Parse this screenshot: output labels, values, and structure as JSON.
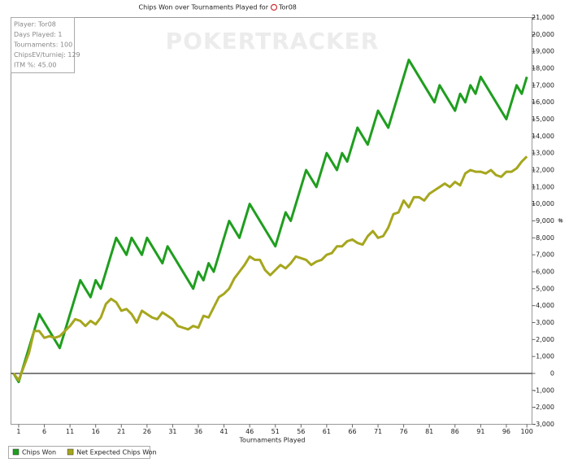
{
  "chart_data": {
    "type": "line",
    "title": "Chips Won over Tournaments Played for",
    "player": "Tor08",
    "watermark": "POKERTRACKER",
    "info": [
      "Player: Tor08",
      "Days Played: 1",
      "Tournaments: 100",
      "ChipsEV/turniej: 129",
      "ITM %: 45.00"
    ],
    "x_label": "Tournaments Played",
    "y_label": "#",
    "xlim": [
      -0.5,
      101
    ],
    "xticks": [
      1,
      6,
      11,
      16,
      21,
      26,
      31,
      36,
      41,
      46,
      51,
      56,
      61,
      66,
      71,
      76,
      81,
      86,
      91,
      96,
      100
    ],
    "ylim": [
      -3000,
      21000
    ],
    "yticks": [
      {
        "value": -3000,
        "label": "-3,000"
      },
      {
        "value": -2000,
        "label": "-2,000"
      },
      {
        "value": -1000,
        "label": "-1,000"
      },
      0,
      {
        "value": 1000,
        "label": "1,000"
      },
      {
        "value": 2000,
        "label": "2,000"
      },
      {
        "value": 3000,
        "label": "3,000"
      },
      {
        "value": 4000,
        "label": "4,000"
      },
      {
        "value": 5000,
        "label": "5,000"
      },
      {
        "value": 6000,
        "label": "6,000"
      },
      {
        "value": 7000,
        "label": "7,000"
      },
      {
        "value": 8000,
        "label": "8,000"
      },
      {
        "value": 9000,
        "label": "9,000"
      },
      {
        "value": 10000,
        "label": "10,000"
      },
      {
        "value": 11000,
        "label": "11,000"
      },
      {
        "value": 12000,
        "label": "12,000"
      },
      {
        "value": 13000,
        "label": "13,000"
      },
      {
        "value": 14000,
        "label": "14,000"
      },
      {
        "value": 15000,
        "label": "15,000"
      },
      {
        "value": 16000,
        "label": "16,000"
      },
      {
        "value": 17000,
        "label": "17,000"
      },
      {
        "value": 18000,
        "label": "18,000"
      },
      {
        "value": 19000,
        "label": "19,000"
      },
      {
        "value": 20000,
        "label": "20,000"
      },
      {
        "value": 21000,
        "label": "21,000"
      }
    ],
    "series": [
      {
        "name": "Chips Won",
        "color": "#1f9e1f",
        "x": [
          0,
          1,
          5,
          9,
          13,
          15,
          16,
          17,
          20,
          22,
          23,
          25,
          26,
          29,
          30,
          35,
          36,
          37,
          38,
          39,
          42,
          44,
          46,
          51,
          53,
          54,
          57,
          59,
          61,
          63,
          64,
          65,
          67,
          69,
          71,
          73,
          77,
          82,
          83,
          86,
          87,
          88,
          89,
          90,
          91,
          96,
          98,
          99,
          100
        ],
        "values": [
          0,
          -500,
          3500,
          1500,
          5500,
          4500,
          5500,
          5000,
          8000,
          7000,
          8000,
          7000,
          8000,
          6500,
          7500,
          5000,
          6000,
          5500,
          6500,
          6000,
          9000,
          8000,
          10000,
          7500,
          9500,
          9000,
          12000,
          11000,
          13000,
          12000,
          13000,
          12500,
          14500,
          13500,
          15500,
          14500,
          18500,
          16000,
          17000,
          15500,
          16500,
          16000,
          17000,
          16500,
          17500,
          15000,
          17000,
          16500,
          17500
        ]
      },
      {
        "name": "Net Expected Chips Won",
        "color": "#a6a61e",
        "x": [
          0,
          1,
          2,
          3,
          4,
          5,
          6,
          7,
          8,
          9,
          10,
          11,
          12,
          13,
          14,
          15,
          16,
          17,
          18,
          19,
          20,
          21,
          22,
          23,
          24,
          25,
          26,
          27,
          28,
          29,
          30,
          31,
          32,
          33,
          34,
          35,
          36,
          37,
          38,
          39,
          40,
          41,
          42,
          43,
          44,
          45,
          46,
          47,
          48,
          49,
          50,
          51,
          52,
          53,
          54,
          55,
          56,
          57,
          58,
          59,
          60,
          61,
          62,
          63,
          64,
          65,
          66,
          67,
          68,
          69,
          70,
          71,
          72,
          73,
          74,
          75,
          76,
          77,
          78,
          79,
          80,
          81,
          82,
          83,
          84,
          85,
          86,
          87,
          88,
          89,
          90,
          91,
          92,
          93,
          94,
          95,
          96,
          97,
          98,
          99,
          100
        ],
        "values": [
          0,
          -400,
          400,
          1200,
          2500,
          2500,
          2100,
          2200,
          2100,
          2200,
          2500,
          2800,
          3200,
          3100,
          2800,
          3100,
          2900,
          3300,
          4100,
          4400,
          4200,
          3700,
          3800,
          3500,
          3000,
          3700,
          3500,
          3300,
          3200,
          3600,
          3400,
          3200,
          2800,
          2700,
          2600,
          2800,
          2700,
          3400,
          3300,
          3900,
          4500,
          4700,
          5000,
          5600,
          6000,
          6400,
          6900,
          6700,
          6700,
          6100,
          5800,
          6100,
          6400,
          6200,
          6500,
          6900,
          6800,
          6700,
          6400,
          6600,
          6700,
          7000,
          7100,
          7500,
          7500,
          7800,
          7900,
          7700,
          7600,
          8100,
          8400,
          8000,
          8100,
          8600,
          9400,
          9500,
          10200,
          9800,
          10400,
          10400,
          10200,
          10600,
          10800,
          11000,
          11200,
          11000,
          11300,
          11100,
          11800,
          12000,
          11900,
          11900,
          11800,
          12000,
          11700,
          11600,
          11900,
          11900,
          12100,
          12500,
          12800
        ]
      }
    ]
  }
}
